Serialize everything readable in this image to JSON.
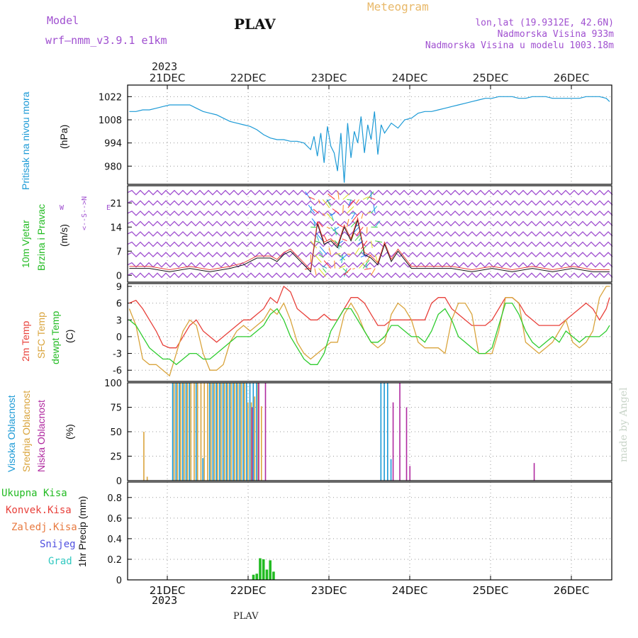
{
  "header": {
    "model_label": "Model",
    "model_name": "wrf—nmm_v3.9.1  e1km",
    "title": "PLAV",
    "meteogram": "Meteogram",
    "lonlat": "lon,lat (19.9312E, 42.6N)",
    "altitude": "Nadmorska Visina 933m",
    "model_altitude": "Nadmorska Visina u modelu 1003.18m",
    "year_top": "2023",
    "year_bottom": "2023",
    "footer": "PLAV",
    "credit": "made by Angel"
  },
  "colors": {
    "pressure": "#1c9ad6",
    "temp2m": "#e8403a",
    "sfctemp": "#d9a43c",
    "dewpt": "#2ecc2e",
    "cloud_high": "#1c9ad6",
    "cloud_mid": "#d9a43c",
    "cloud_low": "#b02aa0",
    "precip_total": "#22bb22",
    "purple": "#a050d0",
    "orange": "#e8a040"
  },
  "chart_data": [
    {
      "type": "line",
      "panel": "pressure",
      "ylabel": "Pritisak na nivou mora",
      "unit": "(hPa)",
      "yticks": [
        980,
        994,
        1008,
        1022
      ],
      "ylim": [
        969,
        1029
      ],
      "categories": [
        "21DEC",
        "22DEC",
        "23DEC",
        "24DEC",
        "25DEC",
        "26DEC"
      ],
      "series": [
        {
          "x": [
            0,
            2,
            4,
            6,
            8,
            10,
            12,
            14,
            16,
            18,
            20,
            22,
            24,
            26,
            28,
            30,
            32,
            34,
            36,
            38,
            40,
            42,
            44,
            46,
            48,
            50,
            52,
            54,
            55,
            56,
            57,
            58,
            59,
            60,
            61,
            62,
            63,
            64,
            65,
            66,
            67,
            68,
            69,
            70,
            71,
            72,
            73,
            74,
            75,
            76,
            78,
            80,
            82,
            84,
            86,
            88,
            90,
            92,
            94,
            96,
            98,
            100,
            102,
            104,
            106,
            108,
            110,
            112,
            114,
            116,
            118,
            120,
            122,
            124,
            126,
            128,
            130,
            132,
            134,
            136,
            138,
            140,
            142,
            143
          ],
          "y": [
            1013,
            1013,
            1014,
            1014,
            1015,
            1016,
            1017,
            1017,
            1017,
            1017,
            1015,
            1013,
            1012,
            1011,
            1009,
            1007,
            1006,
            1005,
            1004,
            1002,
            999,
            997,
            996,
            996,
            995,
            995,
            994,
            990,
            998,
            986,
            1000,
            982,
            1004,
            992,
            988,
            977,
            1000,
            970,
            1006,
            985,
            1001,
            994,
            1010,
            988,
            1005,
            996,
            1013,
            987,
            1005,
            1000,
            1006,
            1003,
            1008,
            1009,
            1012,
            1013,
            1013,
            1014,
            1015,
            1016,
            1017,
            1018,
            1019,
            1020,
            1021,
            1021,
            1022,
            1022,
            1022,
            1021,
            1021,
            1022,
            1022,
            1022,
            1021,
            1021,
            1021,
            1021,
            1021,
            1022,
            1022,
            1022,
            1021,
            1019
          ]
        }
      ]
    },
    {
      "type": "line",
      "panel": "wind",
      "ylabel": "10m Vjetar Brzina i Pravac",
      "unit": "(m/s)",
      "yticks": [
        0,
        7,
        14,
        21
      ],
      "ylim": [
        -2,
        26
      ],
      "series": [
        {
          "name": "wind speed",
          "x": [
            0,
            6,
            12,
            18,
            24,
            30,
            34,
            38,
            42,
            44,
            46,
            48,
            50,
            52,
            54,
            56,
            58,
            60,
            62,
            64,
            66,
            68,
            70,
            72,
            74,
            76,
            78,
            80,
            84,
            90,
            96,
            102,
            108,
            114,
            120,
            126,
            132,
            138,
            143
          ],
          "y": [
            2,
            2,
            1,
            2,
            1,
            2,
            3,
            5,
            5,
            4,
            6,
            7,
            5,
            3,
            1,
            15,
            9,
            10,
            8,
            14,
            10,
            16,
            6,
            5,
            3,
            9,
            4,
            7,
            2,
            2,
            2,
            1,
            2,
            1,
            2,
            1,
            2,
            1,
            1
          ]
        }
      ]
    },
    {
      "type": "line",
      "panel": "temperature",
      "ylabel": "2m Temp / SFC Temp / dewpt Temp",
      "unit": "(C)",
      "yticks": [
        -6,
        -3,
        0,
        3,
        6,
        9
      ],
      "ylim": [
        -8,
        9.5
      ],
      "series": [
        {
          "name": "2m Temp",
          "x": [
            0,
            2,
            4,
            6,
            8,
            10,
            12,
            14,
            16,
            18,
            20,
            22,
            24,
            26,
            28,
            30,
            32,
            34,
            36,
            38,
            40,
            42,
            44,
            46,
            48,
            50,
            52,
            54,
            56,
            58,
            60,
            62,
            64,
            66,
            68,
            70,
            72,
            74,
            76,
            78,
            80,
            82,
            84,
            86,
            88,
            90,
            92,
            94,
            96,
            98,
            100,
            102,
            104,
            106,
            108,
            110,
            112,
            114,
            116,
            118,
            120,
            122,
            124,
            126,
            128,
            130,
            132,
            134,
            136,
            138,
            140,
            142,
            143
          ],
          "y": [
            6,
            6.5,
            5,
            3,
            1,
            -1.5,
            -2,
            -2,
            0,
            2,
            3,
            1,
            0,
            -1,
            0,
            1,
            2,
            3,
            3,
            4,
            5,
            7,
            6,
            9,
            8,
            5,
            4,
            3,
            3,
            4,
            3,
            3,
            5,
            7,
            7,
            6,
            4,
            2,
            2,
            3,
            3,
            3,
            3,
            3,
            3,
            6,
            7,
            7,
            5,
            4,
            3,
            2,
            2,
            2,
            3,
            5,
            7,
            7,
            6,
            4,
            3,
            2,
            2,
            2,
            2,
            3,
            4,
            5,
            6,
            5,
            3,
            5,
            7
          ]
        },
        {
          "name": "SFC Temp",
          "x": [
            0,
            2,
            4,
            6,
            8,
            10,
            12,
            14,
            16,
            18,
            20,
            22,
            24,
            26,
            28,
            30,
            32,
            34,
            36,
            38,
            40,
            42,
            44,
            46,
            48,
            50,
            52,
            54,
            56,
            58,
            60,
            62,
            64,
            66,
            68,
            70,
            72,
            74,
            76,
            78,
            80,
            82,
            84,
            86,
            88,
            90,
            92,
            94,
            96,
            98,
            100,
            102,
            104,
            106,
            108,
            110,
            112,
            114,
            116,
            118,
            120,
            122,
            124,
            126,
            128,
            130,
            132,
            134,
            136,
            138,
            140,
            142,
            143
          ],
          "y": [
            5,
            2,
            -4,
            -5,
            -5,
            -6,
            -7,
            -3,
            1,
            3,
            2,
            -3,
            -6,
            -6,
            -5,
            -1,
            1,
            2,
            1,
            2,
            3,
            5,
            4,
            6,
            3,
            -1,
            -3,
            -4,
            -3,
            -2,
            -1,
            -1,
            4,
            6,
            4,
            1,
            -1,
            -2,
            -1,
            4,
            6,
            5,
            3,
            -1,
            -2,
            -2,
            -2,
            -3,
            3,
            6,
            6,
            4,
            -3,
            -3,
            -3,
            1,
            7,
            7,
            6,
            -1,
            -2,
            -3,
            -2,
            -1,
            1,
            3,
            -1,
            -2,
            -1,
            1,
            7,
            9,
            9
          ]
        },
        {
          "name": "dewpt Temp",
          "x": [
            0,
            2,
            4,
            6,
            8,
            10,
            12,
            14,
            16,
            18,
            20,
            22,
            24,
            26,
            28,
            30,
            32,
            34,
            36,
            38,
            40,
            42,
            44,
            46,
            48,
            50,
            52,
            54,
            56,
            58,
            60,
            62,
            64,
            66,
            68,
            70,
            72,
            74,
            76,
            78,
            80,
            82,
            84,
            86,
            88,
            90,
            92,
            94,
            96,
            98,
            100,
            102,
            104,
            106,
            108,
            110,
            112,
            114,
            116,
            118,
            120,
            122,
            124,
            126,
            128,
            130,
            132,
            134,
            136,
            138,
            140,
            142,
            143
          ],
          "y": [
            3,
            2,
            0,
            -2,
            -3,
            -4,
            -4,
            -5,
            -4,
            -3,
            -3,
            -4,
            -4,
            -3,
            -2,
            -1,
            0,
            0,
            0,
            1,
            2,
            4,
            5,
            3,
            0,
            -2,
            -4,
            -5,
            -5,
            -3,
            1,
            3,
            5,
            5,
            3,
            1,
            -1,
            -1,
            0,
            2,
            2,
            1,
            0,
            0,
            -1,
            1,
            4,
            5,
            3,
            0,
            -1,
            -2,
            -3,
            -3,
            -2,
            2,
            6,
            6,
            4,
            1,
            -1,
            -2,
            -1,
            0,
            -1,
            1,
            0,
            -1,
            0,
            0,
            0,
            1,
            2
          ]
        }
      ]
    },
    {
      "type": "bar",
      "panel": "cloud",
      "ylabel": "Visoka Oblacnost / Srednja Oblacnost / Niska Oblacnost",
      "unit": "(%)",
      "yticks": [
        0,
        25,
        50,
        75,
        100
      ],
      "ylim": [
        0,
        100
      ],
      "series": [
        {
          "name": "Visoka Oblacnost",
          "x": [
            13,
            14,
            15,
            16,
            17,
            18,
            20,
            22,
            24,
            25,
            26,
            27,
            28,
            29,
            30,
            31,
            32,
            33,
            34,
            35,
            36,
            37,
            38,
            75,
            76,
            77,
            78
          ],
          "y": [
            100,
            100,
            100,
            100,
            100,
            100,
            100,
            23,
            100,
            100,
            100,
            100,
            100,
            100,
            100,
            100,
            100,
            100,
            100,
            100,
            100,
            100,
            100,
            100,
            100,
            100,
            22
          ]
        },
        {
          "name": "Srednja Oblacnost",
          "x": [
            4,
            5,
            13,
            14,
            15,
            16,
            17,
            18,
            19,
            20,
            21,
            22,
            23,
            24,
            25,
            26,
            27,
            28,
            29,
            30,
            31,
            32,
            33,
            34,
            35,
            36,
            37,
            38,
            39
          ],
          "y": [
            50,
            4,
            100,
            100,
            100,
            100,
            100,
            100,
            100,
            100,
            100,
            100,
            100,
            100,
            100,
            100,
            100,
            100,
            100,
            100,
            100,
            100,
            100,
            100,
            80,
            80,
            86,
            100,
            76
          ]
        },
        {
          "name": "Niska Oblacnost",
          "x": [
            36,
            38,
            40,
            78,
            80,
            82,
            83,
            120
          ],
          "y": [
            75,
            100,
            100,
            80,
            100,
            75,
            15,
            18
          ]
        }
      ]
    },
    {
      "type": "bar",
      "panel": "precip",
      "ylabel": "1hr Precip",
      "unit": "(mm)",
      "yticks": [
        0,
        0.2,
        0.4,
        0.6,
        0.8
      ],
      "ylim": [
        0,
        0.95
      ],
      "legend": [
        "Ukupna Kisa",
        "Konvek.Kisa",
        "Zaledj.Kisa",
        "Snijeg",
        "Grad"
      ],
      "series": [
        {
          "name": "Ukupna Kisa",
          "x": [
            37,
            38,
            39,
            40,
            41,
            42,
            43
          ],
          "y": [
            0.05,
            0.06,
            0.21,
            0.2,
            0.1,
            0.19,
            0.08
          ]
        }
      ]
    }
  ]
}
